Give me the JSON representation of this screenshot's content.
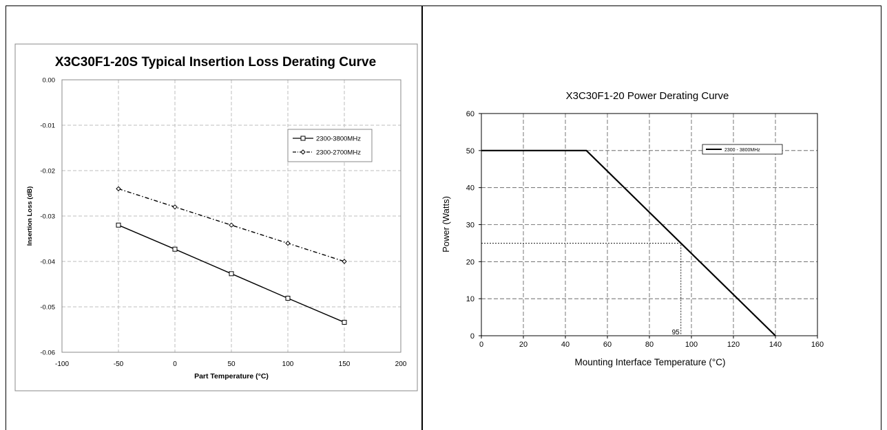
{
  "chart_data": [
    {
      "type": "line",
      "title": "X3C30F1-20S Typical Insertion Loss Derating Curve",
      "xlabel": "Part Temperature (°C)",
      "ylabel": "Insertion Loss (dB)",
      "xlim": [
        -100,
        200
      ],
      "ylim": [
        -0.06,
        0.0
      ],
      "xticks": [
        -100,
        -50,
        0,
        50,
        100,
        150,
        200
      ],
      "xtick_labels": [
        "-100",
        "-50",
        "0",
        "50",
        "100",
        "150",
        "200"
      ],
      "yticks": [
        0.0,
        -0.01,
        -0.02,
        -0.03,
        -0.04,
        -0.05,
        -0.06
      ],
      "ytick_labels": [
        "0.00",
        "-0.01",
        "-0.02",
        "-0.03",
        "-0.04",
        "-0.05",
        "-0.06"
      ],
      "grid": true,
      "legend": "top-right",
      "series": [
        {
          "name": "2300-3800MHz",
          "marker": "square",
          "dash": "solid",
          "x": [
            -50,
            0,
            50,
            100,
            150
          ],
          "values": [
            -0.032,
            -0.0373,
            -0.0427,
            -0.0481,
            -0.0534
          ]
        },
        {
          "name": "2300-2700MHz",
          "marker": "diamond",
          "dash": "dash-dot",
          "x": [
            -50,
            0,
            50,
            100,
            150
          ],
          "values": [
            -0.024,
            -0.028,
            -0.032,
            -0.036,
            -0.04
          ]
        }
      ]
    },
    {
      "type": "line",
      "title": "X3C30F1-20 Power Derating Curve",
      "xlabel": "Mounting Interface Temperature (°C)",
      "ylabel": "Power (Watts)",
      "xlim": [
        0,
        160
      ],
      "ylim": [
        0,
        60
      ],
      "xticks": [
        0,
        20,
        40,
        60,
        80,
        100,
        120,
        140,
        160
      ],
      "xtick_labels": [
        "0",
        "20",
        "40",
        "60",
        "80",
        "100",
        "120",
        "140",
        "160"
      ],
      "yticks": [
        0,
        10,
        20,
        30,
        40,
        50,
        60
      ],
      "ytick_labels": [
        "0",
        "10",
        "20",
        "30",
        "40",
        "50",
        "60"
      ],
      "grid": true,
      "legend": "top-right",
      "series": [
        {
          "name": "2300 - 3800MHz",
          "x": [
            0,
            50,
            140
          ],
          "values": [
            50,
            50,
            0
          ]
        }
      ],
      "annotations": [
        {
          "text": "95",
          "x": 95,
          "y": 25
        }
      ]
    }
  ]
}
